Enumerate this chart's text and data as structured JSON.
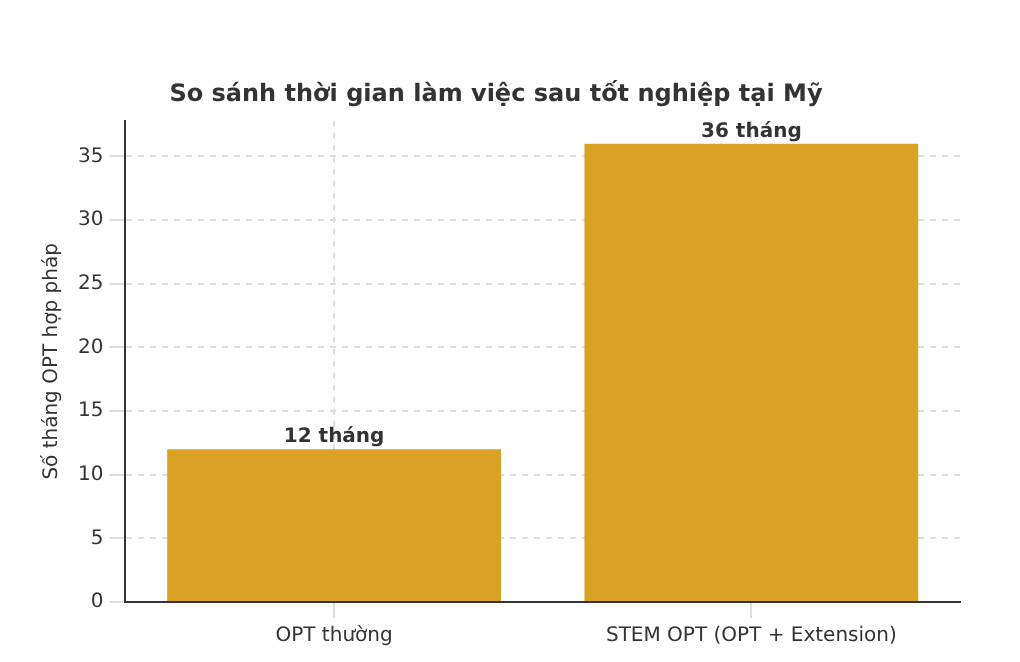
{
  "chart_data": {
    "type": "bar",
    "title": "So sánh thời gian làm việc sau tốt nghiệp tại Mỹ",
    "ylabel": "Số tháng OPT hợp pháp",
    "categories": [
      "OPT thường",
      "STEM OPT (OPT + Extension)"
    ],
    "values": [
      12,
      36
    ],
    "value_labels": [
      "12 tháng",
      "36 tháng"
    ],
    "color": "#daa225",
    "ylim": [
      0,
      37.8
    ],
    "yticks": [
      0,
      5,
      10,
      15,
      20,
      25,
      30,
      35
    ],
    "grid": true,
    "legend": false
  }
}
